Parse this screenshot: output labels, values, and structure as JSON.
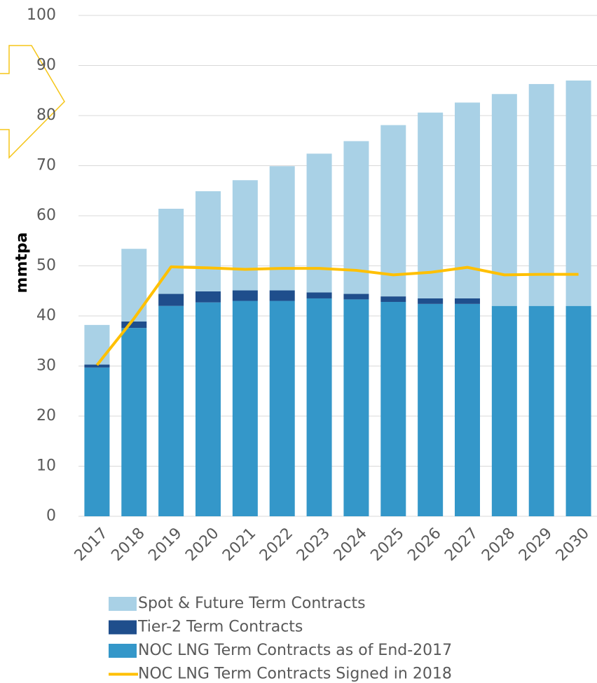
{
  "chart_data": {
    "type": "bar",
    "categories": [
      "2017",
      "2018",
      "2019",
      "2020",
      "2021",
      "2022",
      "2023",
      "2024",
      "2025",
      "2026",
      "2027",
      "2028",
      "2029",
      "2030"
    ],
    "y_label": "mmtpa",
    "stacked": true,
    "series": [
      {
        "name": "Spot & Future Term Contracts",
        "color": "#a9d1e6",
        "values": [
          7.9,
          14.5,
          17.0,
          20.0,
          22.0,
          24.8,
          27.7,
          30.5,
          34.2,
          37.1,
          39.1,
          42.3,
          44.3,
          45.0
        ]
      },
      {
        "name": "Tier-2 Term Contracts",
        "color": "#1f4e8c",
        "values": [
          0.6,
          1.3,
          2.4,
          2.2,
          2.1,
          2.1,
          1.2,
          1.1,
          1.1,
          1.1,
          1.1,
          0,
          0,
          0
        ]
      },
      {
        "name": "NOC LNG Term Contracts as of End-2017",
        "color": "#3497c9",
        "values": [
          29.7,
          37.6,
          42.0,
          42.7,
          43.0,
          43.0,
          43.5,
          43.3,
          42.8,
          42.4,
          42.4,
          42.0,
          42.0,
          42.0
        ]
      },
      {
        "name": "NOC LNG Term Contracts Signed in 2018",
        "color": "#ffc000",
        "type": "line",
        "values": [
          30.2,
          39.5,
          49.8,
          49.6,
          49.3,
          49.5,
          49.5,
          49.1,
          48.2,
          48.7,
          49.7,
          48.2,
          48.3,
          48.3
        ]
      }
    ],
    "ylim": [
      0,
      100
    ],
    "yticks": [
      0,
      10,
      20,
      30,
      40,
      50,
      60,
      70,
      80,
      90,
      100
    ],
    "grid": true
  }
}
